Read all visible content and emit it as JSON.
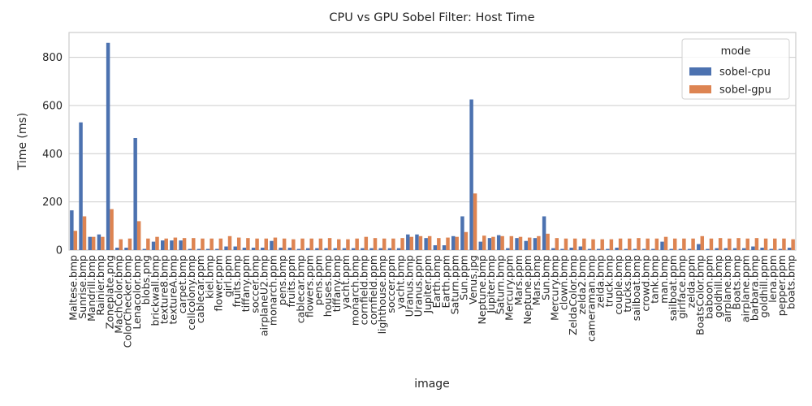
{
  "chart_data": {
    "type": "bar",
    "title": "CPU vs GPU Sobel Filter: Host Time",
    "x_label": "image",
    "y_label": "Time (ms)",
    "legend_title": "mode",
    "legend_position": "upper right",
    "grid": true,
    "ylim": [
      0,
      903
    ],
    "yticks": [
      0,
      200,
      400,
      600,
      800
    ],
    "categories": [
      "Maltese.bmp",
      "Sunrise.bmp",
      "Mandrill.bmp",
      "Rainier.bmp",
      "Zoneplate.png",
      "MachColor.bmp",
      "ColorChecker.bmp",
      "Lenacolor.bmp",
      "blobs.png",
      "brickwall.bmp",
      "texture8.bmp",
      "textureA.bmp",
      "carpet.bmp",
      "cellcolony.bmp",
      "cablecar.ppm",
      "kiel.bmp",
      "flower.ppm",
      "girl.ppm",
      "fruits.bmp",
      "tiffany.ppm",
      "soccer.bmp",
      "airplaneU2.bmp",
      "monarch.ppm",
      "pens.bmp",
      "fruits.ppm",
      "cablecar.bmp",
      "flowers.ppm",
      "pens.ppm",
      "houses.bmp",
      "tiffany.bmp",
      "yacht.ppm",
      "monarch.bmp",
      "cornfield.bmp",
      "cornfield.ppm",
      "lighthouse.bmp",
      "soccer.ppm",
      "yacht.bmp",
      "Uranus.bmp",
      "Uranus.ppm",
      "Jupiter.ppm",
      "Earth.bmp",
      "Earth.ppm",
      "Saturn.ppm",
      "Sun.ppm",
      "Venus.jpg",
      "Neptune.bmp",
      "Jupiter.bmp",
      "Saturn.bmp",
      "Mercury.ppm",
      "Mars.ppm",
      "Neptune.ppm",
      "Mars.bmp",
      "Sun.bmp",
      "Mercury.bmp",
      "clown.bmp",
      "ZeldaColor.bmp",
      "zelda2.bmp",
      "cameraman.bmp",
      "zelda.bmp",
      "truck.bmp",
      "couple.bmp",
      "trucks.bmp",
      "sailboat.bmp",
      "crowd.bmp",
      "tank.bmp",
      "man.bmp",
      "sailboat.ppm",
      "girlface.bmp",
      "zelda.ppm",
      "BoatsColor.bmp",
      "baboon.ppm",
      "goldhill.bmp",
      "airplane.bmp",
      "Boats.bmp",
      "airplane.ppm",
      "barbara.bmp",
      "goldhill.ppm",
      "lena.ppm",
      "pepper.ppm",
      "boats.bmp"
    ],
    "series": [
      {
        "name": "sobel-cpu",
        "color": "#4c72b0",
        "values": [
          165,
          530,
          55,
          65,
          860,
          10,
          10,
          465,
          5,
          35,
          40,
          40,
          40,
          5,
          5,
          5,
          5,
          15,
          15,
          10,
          10,
          10,
          38,
          10,
          10,
          5,
          8,
          8,
          8,
          8,
          8,
          8,
          8,
          8,
          8,
          8,
          8,
          65,
          65,
          50,
          20,
          20,
          58,
          140,
          625,
          35,
          50,
          62,
          8,
          50,
          38,
          50,
          140,
          8,
          5,
          10,
          15,
          5,
          5,
          5,
          10,
          5,
          5,
          5,
          5,
          35,
          5,
          5,
          5,
          25,
          5,
          8,
          8,
          8,
          8,
          15,
          10,
          5,
          5,
          10
        ]
      },
      {
        "name": "sobel-gpu",
        "color": "#dd8452",
        "values": [
          80,
          140,
          55,
          55,
          170,
          45,
          48,
          120,
          48,
          55,
          48,
          52,
          50,
          50,
          48,
          48,
          48,
          58,
          52,
          50,
          48,
          48,
          52,
          48,
          45,
          48,
          48,
          48,
          50,
          45,
          45,
          48,
          55,
          50,
          48,
          48,
          50,
          55,
          58,
          58,
          50,
          52,
          55,
          75,
          235,
          60,
          55,
          58,
          58,
          55,
          52,
          58,
          68,
          50,
          48,
          48,
          48,
          45,
          45,
          45,
          48,
          48,
          50,
          48,
          48,
          55,
          48,
          48,
          48,
          58,
          48,
          50,
          48,
          50,
          48,
          50,
          48,
          48,
          48,
          45
        ]
      }
    ]
  }
}
